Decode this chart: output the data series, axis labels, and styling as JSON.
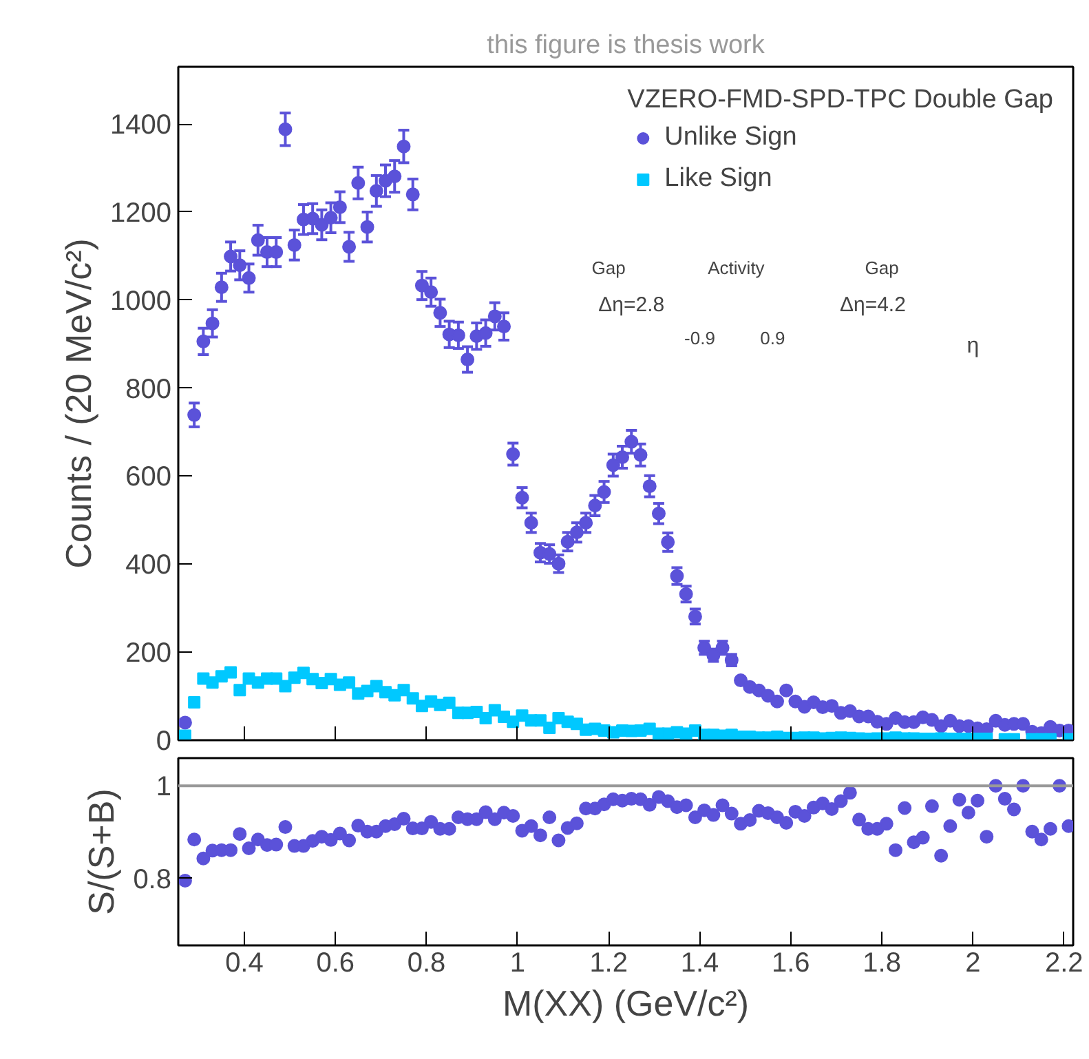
{
  "chart_data": [
    {
      "type": "scatter",
      "ylabel": "Counts / (20 MeV/c²)",
      "legend_title": "VZERO-FMD-SPD-TPC Double Gap",
      "legend": "top right",
      "tick_labels": "y",
      "annotations": [
        "this figure is thesis work",
        "Gap",
        "Activity",
        "Gap",
        "Δη=2.8",
        "Δη=4.2",
        "-0.9",
        "0.9",
        "η"
      ],
      "xlim": [
        0.255,
        2.22
      ],
      "xticks": [
        0.4,
        0.6,
        0.8,
        1,
        1.2,
        1.4,
        1.6,
        1.8,
        2,
        2.2
      ],
      "ylim": [
        0,
        1530
      ],
      "yticks": [
        0,
        200,
        400,
        600,
        800,
        1000,
        1200,
        1400
      ],
      "x": [
        0.27,
        0.29,
        0.31,
        0.33,
        0.35,
        0.37,
        0.39,
        0.41,
        0.43,
        0.45,
        0.47,
        0.49,
        0.51,
        0.53,
        0.55,
        0.57,
        0.59,
        0.61,
        0.63,
        0.65,
        0.67,
        0.69,
        0.71,
        0.73,
        0.75,
        0.77,
        0.79,
        0.81,
        0.83,
        0.85,
        0.87,
        0.89,
        0.91,
        0.93,
        0.95,
        0.97,
        0.99,
        1.01,
        1.03,
        1.05,
        1.07,
        1.09,
        1.11,
        1.13,
        1.15,
        1.17,
        1.19,
        1.21,
        1.23,
        1.25,
        1.27,
        1.29,
        1.31,
        1.33,
        1.35,
        1.37,
        1.39,
        1.41,
        1.43,
        1.45,
        1.47,
        1.49,
        1.51,
        1.53,
        1.55,
        1.57,
        1.59,
        1.61,
        1.63,
        1.65,
        1.67,
        1.69,
        1.71,
        1.73,
        1.75,
        1.77,
        1.79,
        1.81,
        1.83,
        1.85,
        1.87,
        1.89,
        1.91,
        1.93,
        1.95,
        1.97,
        1.99,
        2.01,
        2.03,
        2.05,
        2.07,
        2.09,
        2.11,
        2.13,
        2.15,
        2.17,
        2.19,
        2.21
      ],
      "series": [
        {
          "name": "Unlike Sign",
          "color": "#5b52d9",
          "marker": "circle",
          "values": [
            40,
            739,
            906,
            947,
            1029,
            1099,
            1079,
            1050,
            1136,
            1109,
            1109,
            1388,
            1125,
            1183,
            1185,
            1171,
            1187,
            1211,
            1121,
            1266,
            1166,
            1248,
            1271,
            1281,
            1349,
            1240,
            1033,
            1018,
            971,
            922,
            920,
            865,
            918,
            925,
            963,
            940,
            650,
            551,
            494,
            426,
            423,
            401,
            451,
            472,
            494,
            533,
            564,
            625,
            643,
            678,
            648,
            577,
            515,
            450,
            373,
            332,
            281,
            210,
            193,
            210,
            182,
            136,
            121,
            113,
            101,
            88,
            113,
            88,
            76,
            86,
            75,
            78,
            62,
            66,
            54,
            54,
            42,
            37,
            50,
            41,
            41,
            52,
            46,
            32,
            44,
            32,
            32,
            27,
            25,
            44,
            35,
            37,
            37,
            19,
            16,
            30,
            22,
            22
          ],
          "errors": [
            null,
            27,
            30,
            31,
            32,
            33,
            33,
            32,
            34,
            33,
            33,
            37,
            34,
            34,
            34,
            34,
            34,
            35,
            33,
            36,
            34,
            35,
            36,
            36,
            37,
            35,
            32,
            32,
            31,
            30,
            30,
            29,
            30,
            30,
            31,
            31,
            25,
            23,
            22,
            21,
            21,
            20,
            21,
            22,
            22,
            23,
            24,
            25,
            25,
            26,
            25,
            24,
            23,
            21,
            19,
            18,
            17,
            15,
            14,
            15,
            13,
            null,
            null,
            null,
            null,
            null,
            null,
            null,
            null,
            null,
            null,
            null,
            null,
            null,
            null,
            null,
            null,
            null,
            null,
            null,
            null,
            null,
            null,
            null,
            null,
            null,
            null,
            null,
            null,
            null,
            null,
            null,
            null,
            null,
            null,
            null,
            null,
            null
          ]
        },
        {
          "name": "Like Sign",
          "color": "#00c8ff",
          "marker": "square",
          "values": [
            10,
            86,
            140,
            131,
            145,
            154,
            114,
            140,
            131,
            140,
            140,
            123,
            142,
            153,
            139,
            130,
            139,
            126,
            131,
            106,
            112,
            123,
            109,
            102,
            114,
            95,
            78,
            88,
            80,
            85,
            62,
            62,
            64,
            50,
            68,
            53,
            42,
            56,
            45,
            45,
            28,
            50,
            42,
            37,
            24,
            26,
            22,
            18,
            22,
            21,
            22,
            26,
            15,
            15,
            18,
            15,
            22,
            12,
            12,
            10,
            12,
            8,
            8,
            6,
            6,
            8,
            5,
            5,
            6,
            6,
            4,
            5,
            6,
            5,
            4,
            3,
            4,
            4,
            6,
            4,
            4,
            3,
            3,
            4,
            3,
            3,
            3,
            3,
            3,
            null,
            2,
            2,
            null,
            2,
            2,
            2,
            null,
            2
          ]
        }
      ]
    },
    {
      "type": "scatter",
      "xlabel": "M(XX) (GeV/c²)",
      "ylabel": "S/(S+B)",
      "marker": "circle",
      "xlim": [
        0.255,
        2.22
      ],
      "xticks": [
        0.4,
        0.6,
        0.8,
        1,
        1.2,
        1.4,
        1.6,
        1.8,
        2,
        2.2
      ],
      "ylim": [
        0.655,
        1.06
      ],
      "yticks": [
        0.8,
        1
      ],
      "ref_lines": [
        {
          "axis": "y",
          "value": 1,
          "color": "#999999"
        }
      ],
      "x": [
        0.27,
        0.29,
        0.31,
        0.33,
        0.35,
        0.37,
        0.39,
        0.41,
        0.43,
        0.45,
        0.47,
        0.49,
        0.51,
        0.53,
        0.55,
        0.57,
        0.59,
        0.61,
        0.63,
        0.65,
        0.67,
        0.69,
        0.71,
        0.73,
        0.75,
        0.77,
        0.79,
        0.81,
        0.83,
        0.85,
        0.87,
        0.89,
        0.91,
        0.93,
        0.95,
        0.97,
        0.99,
        1.01,
        1.03,
        1.05,
        1.07,
        1.09,
        1.11,
        1.13,
        1.15,
        1.17,
        1.19,
        1.21,
        1.23,
        1.25,
        1.27,
        1.29,
        1.31,
        1.33,
        1.35,
        1.37,
        1.39,
        1.41,
        1.43,
        1.45,
        1.47,
        1.49,
        1.51,
        1.53,
        1.55,
        1.57,
        1.59,
        1.61,
        1.63,
        1.65,
        1.67,
        1.69,
        1.71,
        1.73,
        1.75,
        1.77,
        1.79,
        1.81,
        1.83,
        1.85,
        1.87,
        1.89,
        1.91,
        1.93,
        1.95,
        1.97,
        1.99,
        2.01,
        2.03,
        2.05,
        2.07,
        2.09,
        2.11,
        2.13,
        2.15,
        2.17,
        2.19,
        2.21
      ],
      "series": [
        {
          "color": "#5b52d9",
          "values": [
            0.795,
            0.884,
            0.843,
            0.86,
            0.861,
            0.861,
            0.896,
            0.865,
            0.884,
            0.872,
            0.873,
            0.911,
            0.87,
            0.87,
            0.881,
            0.89,
            0.883,
            0.897,
            0.882,
            0.914,
            0.901,
            0.901,
            0.913,
            0.917,
            0.929,
            0.908,
            0.908,
            0.922,
            0.907,
            0.907,
            0.932,
            0.928,
            0.928,
            0.943,
            0.928,
            0.942,
            0.935,
            0.903,
            0.913,
            0.893,
            0.932,
            0.882,
            0.909,
            0.919,
            0.951,
            0.951,
            0.96,
            0.971,
            0.968,
            0.972,
            0.971,
            0.959,
            0.976,
            0.967,
            0.954,
            0.958,
            0.932,
            0.947,
            0.937,
            0.958,
            0.94,
            0.918,
            0.926,
            0.946,
            0.941,
            0.932,
            0.92,
            0.944,
            0.935,
            0.953,
            0.962,
            0.95,
            0.967,
            0.985,
            0.927,
            0.907,
            0.907,
            0.918,
            0.861,
            0.952,
            0.878,
            0.888,
            0.956,
            0.849,
            0.913,
            0.97,
            0.942,
            0.968,
            0.89,
            1.0,
            0.972,
            0.949,
            1.0,
            0.901,
            0.884,
            0.907,
            1.0,
            0.913
          ]
        }
      ]
    }
  ]
}
